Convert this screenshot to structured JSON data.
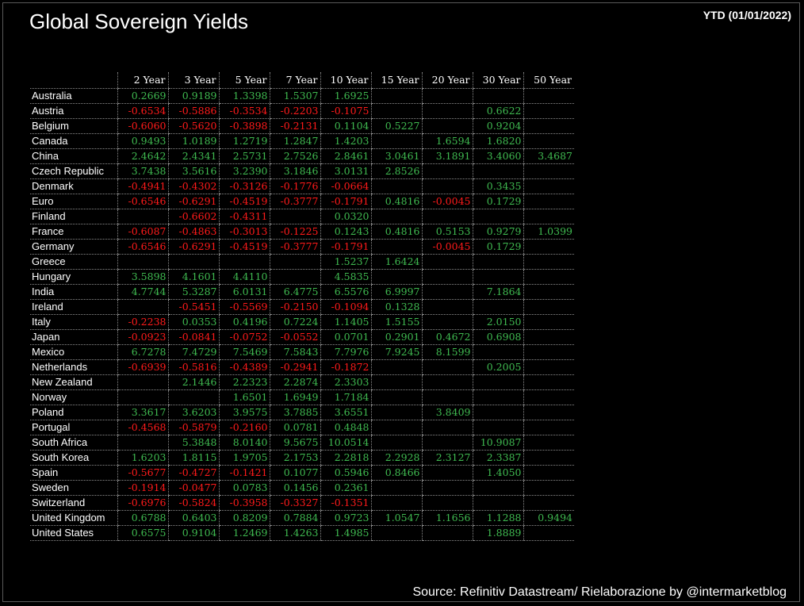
{
  "title": "Global Sovereign Yields",
  "period": "YTD (01/01/2022)",
  "source": "Source: Refinitiv Datastream/ Rielaborazione by @intermarketblog",
  "colors": {
    "positive": "#3fb950",
    "negative": "#ff1a1a",
    "background": "#000000",
    "text": "#ffffff"
  },
  "chart_data": {
    "type": "table",
    "columns": [
      "2 Year",
      "3 Year",
      "5 Year",
      "7 Year",
      "10 Year",
      "15 Year",
      "20 Year",
      "30 Year",
      "50 Year"
    ],
    "rows": [
      {
        "country": "Australia",
        "values": [
          "0.2669",
          "0.9189",
          "1.3398",
          "1.5307",
          "1.6925",
          "",
          "",
          "",
          ""
        ]
      },
      {
        "country": "Austria",
        "values": [
          "-0.6534",
          "-0.5886",
          "-0.3534",
          "-0.2203",
          "-0.1075",
          "",
          "",
          "0.6622",
          ""
        ]
      },
      {
        "country": "Belgium",
        "values": [
          "-0.6060",
          "-0.5620",
          "-0.3898",
          "-0.2131",
          "0.1104",
          "0.5227",
          "",
          "0.9204",
          ""
        ]
      },
      {
        "country": "Canada",
        "values": [
          "0.9493",
          "1.0189",
          "1.2719",
          "1.2847",
          "1.4203",
          "",
          "1.6594",
          "1.6820",
          ""
        ]
      },
      {
        "country": "China",
        "values": [
          "2.4642",
          "2.4341",
          "2.5731",
          "2.7526",
          "2.8461",
          "3.0461",
          "3.1891",
          "3.4060",
          "3.4687"
        ]
      },
      {
        "country": "Czech Republic",
        "values": [
          "3.7438",
          "3.5616",
          "3.2390",
          "3.1846",
          "3.0131",
          "2.8526",
          "",
          "",
          ""
        ]
      },
      {
        "country": "Denmark",
        "values": [
          "-0.4941",
          "-0.4302",
          "-0.3126",
          "-0.1776",
          "-0.0664",
          "",
          "",
          "0.3435",
          ""
        ]
      },
      {
        "country": "Euro",
        "values": [
          "-0.6546",
          "-0.6291",
          "-0.4519",
          "-0.3777",
          "-0.1791",
          "0.4816",
          "-0.0045",
          "0.1729",
          ""
        ]
      },
      {
        "country": "Finland",
        "values": [
          "",
          "-0.6602",
          "-0.4311",
          "",
          "0.0320",
          "",
          "",
          "",
          ""
        ]
      },
      {
        "country": "France",
        "values": [
          "-0.6087",
          "-0.4863",
          "-0.3013",
          "-0.1225",
          "0.1243",
          "0.4816",
          "0.5153",
          "0.9279",
          "1.0399"
        ]
      },
      {
        "country": "Germany",
        "values": [
          "-0.6546",
          "-0.6291",
          "-0.4519",
          "-0.3777",
          "-0.1791",
          "",
          "-0.0045",
          "0.1729",
          ""
        ]
      },
      {
        "country": "Greece",
        "values": [
          "",
          "",
          "",
          "",
          "1.5237",
          "1.6424",
          "",
          "",
          ""
        ]
      },
      {
        "country": "Hungary",
        "values": [
          "3.5898",
          "4.1601",
          "4.4110",
          "",
          "4.5835",
          "",
          "",
          "",
          ""
        ]
      },
      {
        "country": "India",
        "values": [
          "4.7744",
          "5.3287",
          "6.0131",
          "6.4775",
          "6.5576",
          "6.9997",
          "",
          "7.1864",
          ""
        ]
      },
      {
        "country": "Ireland",
        "values": [
          "",
          "-0.5451",
          "-0.5569",
          "-0.2150",
          "-0.1094",
          "0.1328",
          "",
          "",
          ""
        ]
      },
      {
        "country": "Italy",
        "values": [
          "-0.2238",
          "0.0353",
          "0.4196",
          "0.7224",
          "1.1405",
          "1.5155",
          "",
          "2.0150",
          ""
        ]
      },
      {
        "country": "Japan",
        "values": [
          "-0.0923",
          "-0.0841",
          "-0.0752",
          "-0.0552",
          "0.0701",
          "0.2901",
          "0.4672",
          "0.6908",
          ""
        ]
      },
      {
        "country": "Mexico",
        "values": [
          "6.7278",
          "7.4729",
          "7.5469",
          "7.5843",
          "7.7976",
          "7.9245",
          "8.1599",
          "",
          ""
        ]
      },
      {
        "country": "Netherlands",
        "values": [
          "-0.6939",
          "-0.5816",
          "-0.4389",
          "-0.2941",
          "-0.1872",
          "",
          "",
          "0.2005",
          ""
        ]
      },
      {
        "country": "New Zealand",
        "values": [
          "",
          "2.1446",
          "2.2323",
          "2.2874",
          "2.3303",
          "",
          "",
          "",
          ""
        ]
      },
      {
        "country": "Norway",
        "values": [
          "",
          "",
          "1.6501",
          "1.6949",
          "1.7184",
          "",
          "",
          "",
          ""
        ]
      },
      {
        "country": "Poland",
        "values": [
          "3.3617",
          "3.6203",
          "3.9575",
          "3.7885",
          "3.6551",
          "",
          "3.8409",
          "",
          ""
        ]
      },
      {
        "country": "Portugal",
        "values": [
          "-0.4568",
          "-0.5879",
          "-0.2160",
          "0.0781",
          "0.4848",
          "",
          "",
          "",
          ""
        ]
      },
      {
        "country": "South Africa",
        "values": [
          "",
          "5.3848",
          "8.0140",
          "9.5675",
          "10.0514",
          "",
          "",
          "10.9087",
          ""
        ]
      },
      {
        "country": "South Korea",
        "values": [
          "1.6203",
          "1.8115",
          "1.9705",
          "2.1753",
          "2.2818",
          "2.2928",
          "2.3127",
          "2.3387",
          ""
        ]
      },
      {
        "country": "Spain",
        "values": [
          "-0.5677",
          "-0.4727",
          "-0.1421",
          "0.1077",
          "0.5946",
          "0.8466",
          "",
          "1.4050",
          ""
        ]
      },
      {
        "country": "Sweden",
        "values": [
          "-0.1914",
          "-0.0477",
          "0.0783",
          "0.1456",
          "0.2361",
          "",
          "",
          "",
          ""
        ]
      },
      {
        "country": "Switzerland",
        "values": [
          "-0.6976",
          "-0.5824",
          "-0.3958",
          "-0.3327",
          "-0.1351",
          "",
          "",
          "",
          ""
        ]
      },
      {
        "country": "United Kingdom",
        "values": [
          "0.6788",
          "0.6403",
          "0.8209",
          "0.7884",
          "0.9723",
          "1.0547",
          "1.1656",
          "1.1288",
          "0.9494"
        ]
      },
      {
        "country": "United States",
        "values": [
          "0.6575",
          "0.9104",
          "1.2469",
          "1.4263",
          "1.4985",
          "",
          "",
          "1.8889",
          ""
        ]
      }
    ]
  }
}
